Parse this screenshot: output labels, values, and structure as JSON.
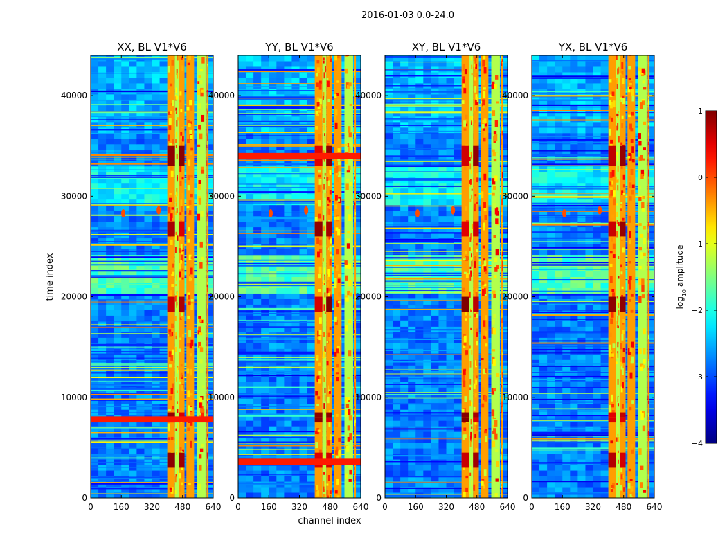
{
  "figure": {
    "suptitle": "2016-01-03 0.0-24.0",
    "xlabel": "channel index",
    "ylabel": "time index"
  },
  "colorbar": {
    "label_prefix": "log",
    "label_sub": "10",
    "label_suffix": " amplitude",
    "range": [
      -4,
      1
    ],
    "ticks": [
      1,
      0,
      -1,
      -2,
      -3,
      -4
    ],
    "tick_labels": [
      "1",
      "0",
      "−1",
      "−2",
      "−3",
      "−4"
    ],
    "colormap": "jet"
  },
  "chart_data": [
    {
      "type": "heatmap",
      "title": "XX, BL V1*V6",
      "xlim": [
        0,
        640
      ],
      "ylim": [
        0,
        44000
      ],
      "xticks": [
        0,
        160,
        320,
        480,
        640
      ],
      "yticks": [
        0,
        10000,
        20000,
        30000,
        40000
      ],
      "xtick_labels": [
        "0",
        "160",
        "320",
        "480",
        "640"
      ],
      "ytick_labels": [
        "0",
        "10000",
        "20000",
        "30000",
        "40000"
      ],
      "xlabel": "",
      "ylabel": "time index",
      "rfi_channel_bands": [
        [
          400,
          440
        ],
        [
          440,
          460
        ],
        [
          460,
          490
        ],
        [
          500,
          540
        ],
        [
          555,
          600
        ],
        [
          605,
          615
        ]
      ],
      "strong_time_bands": [
        [
          33000,
          35000
        ],
        [
          26000,
          27500
        ],
        [
          18500,
          20000
        ],
        [
          8000,
          8500
        ],
        [
          7500,
          8000
        ],
        [
          3000,
          4500
        ]
      ],
      "broadband_feature_times": [
        7800
      ],
      "spot_features": [
        {
          "channel": 170,
          "time": 28300
        },
        {
          "channel": 355,
          "time": 28600
        }
      ]
    },
    {
      "type": "heatmap",
      "title": "YY, BL V1*V6",
      "xlim": [
        0,
        640
      ],
      "ylim": [
        0,
        44000
      ],
      "xticks": [
        0,
        160,
        320,
        480,
        640
      ],
      "yticks": [
        0,
        10000,
        20000,
        30000,
        40000
      ],
      "xtick_labels": [
        "0",
        "160",
        "320",
        "480",
        "640"
      ],
      "ytick_labels": [
        "0",
        "10000",
        "20000",
        "30000",
        "40000"
      ],
      "xlabel": "channel index",
      "ylabel": "",
      "rfi_channel_bands": [
        [
          400,
          440
        ],
        [
          440,
          460
        ],
        [
          460,
          490
        ],
        [
          500,
          540
        ],
        [
          555,
          600
        ],
        [
          605,
          615
        ]
      ],
      "strong_time_bands": [
        [
          33000,
          35000
        ],
        [
          26000,
          27500
        ],
        [
          18500,
          20000
        ],
        [
          8000,
          8500
        ],
        [
          7500,
          8000
        ],
        [
          3000,
          4500
        ]
      ],
      "broadband_feature_times": [
        34000,
        3600
      ],
      "spot_features": [
        {
          "channel": 170,
          "time": 28300
        },
        {
          "channel": 355,
          "time": 28600
        }
      ]
    },
    {
      "type": "heatmap",
      "title": "XY, BL V1*V6",
      "xlim": [
        0,
        640
      ],
      "ylim": [
        0,
        44000
      ],
      "xticks": [
        0,
        160,
        320,
        480,
        640
      ],
      "yticks": [
        0,
        10000,
        20000,
        30000,
        40000
      ],
      "xtick_labels": [
        "0",
        "160",
        "320",
        "480",
        "640"
      ],
      "ytick_labels": [
        "0",
        "10000",
        "20000",
        "30000",
        "40000"
      ],
      "xlabel": "",
      "ylabel": "",
      "rfi_channel_bands": [
        [
          400,
          440
        ],
        [
          440,
          460
        ],
        [
          460,
          490
        ],
        [
          500,
          540
        ],
        [
          555,
          600
        ],
        [
          605,
          615
        ]
      ],
      "strong_time_bands": [
        [
          33000,
          35000
        ],
        [
          26000,
          27500
        ],
        [
          18500,
          20000
        ],
        [
          8000,
          8500
        ],
        [
          7500,
          8000
        ],
        [
          3000,
          4500
        ]
      ],
      "broadband_feature_times": [],
      "spot_features": [
        {
          "channel": 170,
          "time": 28300
        },
        {
          "channel": 355,
          "time": 28600
        }
      ]
    },
    {
      "type": "heatmap",
      "title": "YX, BL V1*V6",
      "xlim": [
        0,
        640
      ],
      "ylim": [
        0,
        44000
      ],
      "xticks": [
        0,
        160,
        320,
        480,
        640
      ],
      "yticks": [
        0,
        10000,
        20000,
        30000,
        40000
      ],
      "xtick_labels": [
        "0",
        "160",
        "320",
        "480",
        "640"
      ],
      "ytick_labels": [
        "0",
        "10000",
        "20000",
        "30000",
        "40000"
      ],
      "xlabel": "",
      "ylabel": "",
      "rfi_channel_bands": [
        [
          400,
          440
        ],
        [
          440,
          460
        ],
        [
          460,
          490
        ],
        [
          500,
          540
        ],
        [
          555,
          600
        ],
        [
          605,
          615
        ]
      ],
      "strong_time_bands": [
        [
          33000,
          35000
        ],
        [
          26000,
          27500
        ],
        [
          18500,
          20000
        ],
        [
          8000,
          8500
        ],
        [
          7500,
          8000
        ],
        [
          3000,
          4500
        ]
      ],
      "broadband_feature_times": [],
      "spot_features": [
        {
          "channel": 170,
          "time": 28300
        },
        {
          "channel": 355,
          "time": 28600
        }
      ]
    }
  ]
}
